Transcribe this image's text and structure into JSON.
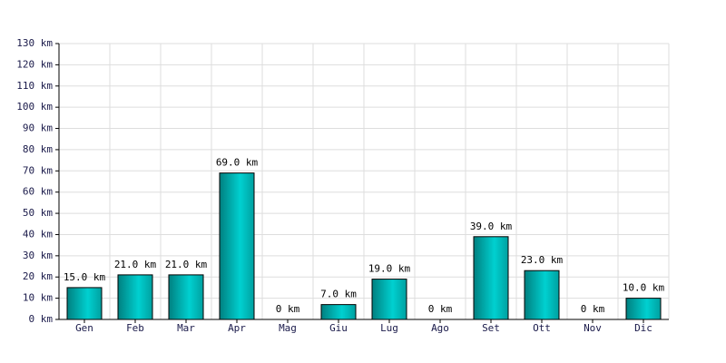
{
  "chart_data": {
    "type": "bar",
    "categories": [
      "Gen",
      "Feb",
      "Mar",
      "Apr",
      "Mag",
      "Giu",
      "Lug",
      "Ago",
      "Set",
      "Ott",
      "Nov",
      "Dic"
    ],
    "values": [
      15,
      21,
      21,
      69,
      0,
      7,
      19,
      0,
      39,
      23,
      0,
      10
    ],
    "value_labels": [
      "15.0 km",
      "21.0 km",
      "21.0 km",
      "69.0 km",
      "0 km",
      "7.0 km",
      "19.0 km",
      "0 km",
      "39.0 km",
      "23.0 km",
      "0 km",
      "10.0 km"
    ],
    "color": "#00d0d0",
    "ylim": [
      0,
      130
    ],
    "yticks": [
      {
        "value": 0,
        "label": "0 km"
      },
      {
        "value": 10,
        "label": "10 km"
      },
      {
        "value": 20,
        "label": "20 km"
      },
      {
        "value": 30,
        "label": "30 km"
      },
      {
        "value": 40,
        "label": "40 km"
      },
      {
        "value": 50,
        "label": "50 km"
      },
      {
        "value": 60,
        "label": "60 km"
      },
      {
        "value": 70,
        "label": "70 km"
      },
      {
        "value": 80,
        "label": "80 km"
      },
      {
        "value": 90,
        "label": "90 km"
      },
      {
        "value": 100,
        "label": "100 km"
      },
      {
        "value": 110,
        "label": "110 km"
      },
      {
        "value": 120,
        "label": "120 km"
      },
      {
        "value": 130,
        "label": "130 km"
      }
    ],
    "grid": true
  }
}
